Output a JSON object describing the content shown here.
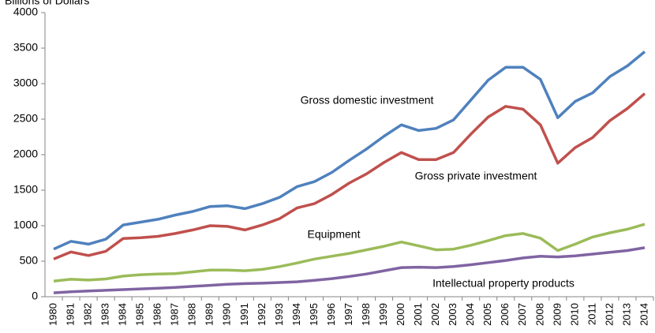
{
  "chart_data": {
    "type": "line",
    "y_label": "Billions of Dollars",
    "categories": [
      "1980",
      "1981",
      "1982",
      "1983",
      "1984",
      "1985",
      "1986",
      "1987",
      "1988",
      "1989",
      "1990",
      "1991",
      "1992",
      "1993",
      "1994",
      "1995",
      "1996",
      "1997",
      "1998",
      "1999",
      "2000",
      "2001",
      "2002",
      "2003",
      "2004",
      "2005",
      "2006",
      "2007",
      "2008",
      "2009",
      "2010",
      "2011",
      "2012",
      "2013",
      "2014"
    ],
    "series": [
      {
        "name": "Gross domestic investment",
        "color": "#4f81bd",
        "values": [
          670,
          780,
          740,
          810,
          1010,
          1050,
          1090,
          1150,
          1200,
          1270,
          1280,
          1240,
          1310,
          1400,
          1550,
          1620,
          1750,
          1920,
          2080,
          2260,
          2420,
          2340,
          2370,
          2490,
          2770,
          3050,
          3230,
          3230,
          3060,
          2520,
          2750,
          2870,
          3100,
          3250,
          3450
        ]
      },
      {
        "name": "Gross private investment",
        "color": "#c0504d",
        "values": [
          530,
          630,
          580,
          640,
          820,
          830,
          850,
          890,
          940,
          1000,
          990,
          940,
          1010,
          1100,
          1250,
          1310,
          1440,
          1600,
          1730,
          1890,
          2030,
          1930,
          1930,
          2030,
          2290,
          2530,
          2680,
          2640,
          2420,
          1880,
          2100,
          2240,
          2480,
          2650,
          2860
        ]
      },
      {
        "name": "Equipment",
        "color": "#9bbb59",
        "values": [
          220,
          245,
          235,
          250,
          290,
          310,
          320,
          325,
          350,
          375,
          375,
          365,
          385,
          425,
          475,
          530,
          570,
          610,
          660,
          710,
          770,
          715,
          660,
          670,
          725,
          790,
          860,
          890,
          825,
          650,
          740,
          840,
          900,
          950,
          1020
        ]
      },
      {
        "name": "Intellectual property products",
        "color": "#8064a2",
        "values": [
          55,
          70,
          80,
          90,
          100,
          110,
          120,
          130,
          145,
          160,
          175,
          185,
          190,
          200,
          210,
          230,
          255,
          285,
          320,
          365,
          410,
          415,
          410,
          425,
          450,
          480,
          510,
          545,
          570,
          560,
          575,
          600,
          625,
          650,
          690
        ]
      }
    ],
    "ylim": [
      0,
      4000
    ],
    "yticks": [
      0,
      500,
      1000,
      1500,
      2000,
      2500,
      3000,
      3500,
      4000
    ],
    "grid": false
  }
}
